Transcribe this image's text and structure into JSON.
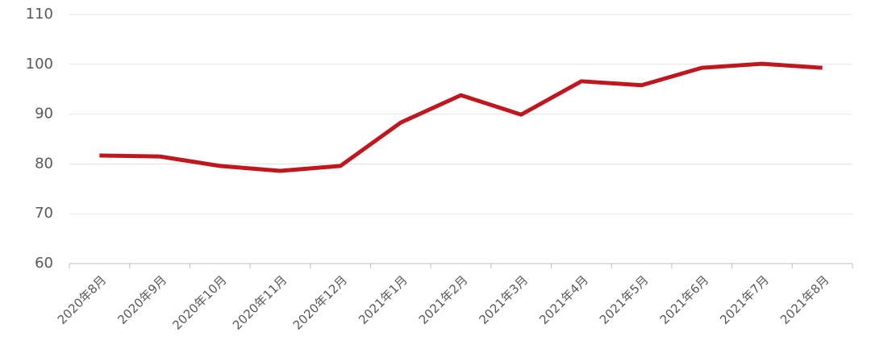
{
  "chart_data": {
    "type": "line",
    "categories": [
      "2020年8月",
      "2020年9月",
      "2020年10月",
      "2020年11月",
      "2020年12月",
      "2021年1月",
      "2021年2月",
      "2021年3月",
      "2021年4月",
      "2021年5月",
      "2021年6月",
      "2021年7月",
      "2021年8月"
    ],
    "series": [
      {
        "color": "#c0171f",
        "values": [
          81.7,
          81.5,
          79.6,
          78.6,
          79.6,
          88.3,
          93.8,
          89.9,
          96.6,
          95.8,
          99.3,
          100.1,
          99.3
        ]
      }
    ],
    "ylim": [
      60,
      110
    ],
    "yticks": [
      60,
      70,
      80,
      90,
      100,
      110
    ],
    "grid": true
  }
}
